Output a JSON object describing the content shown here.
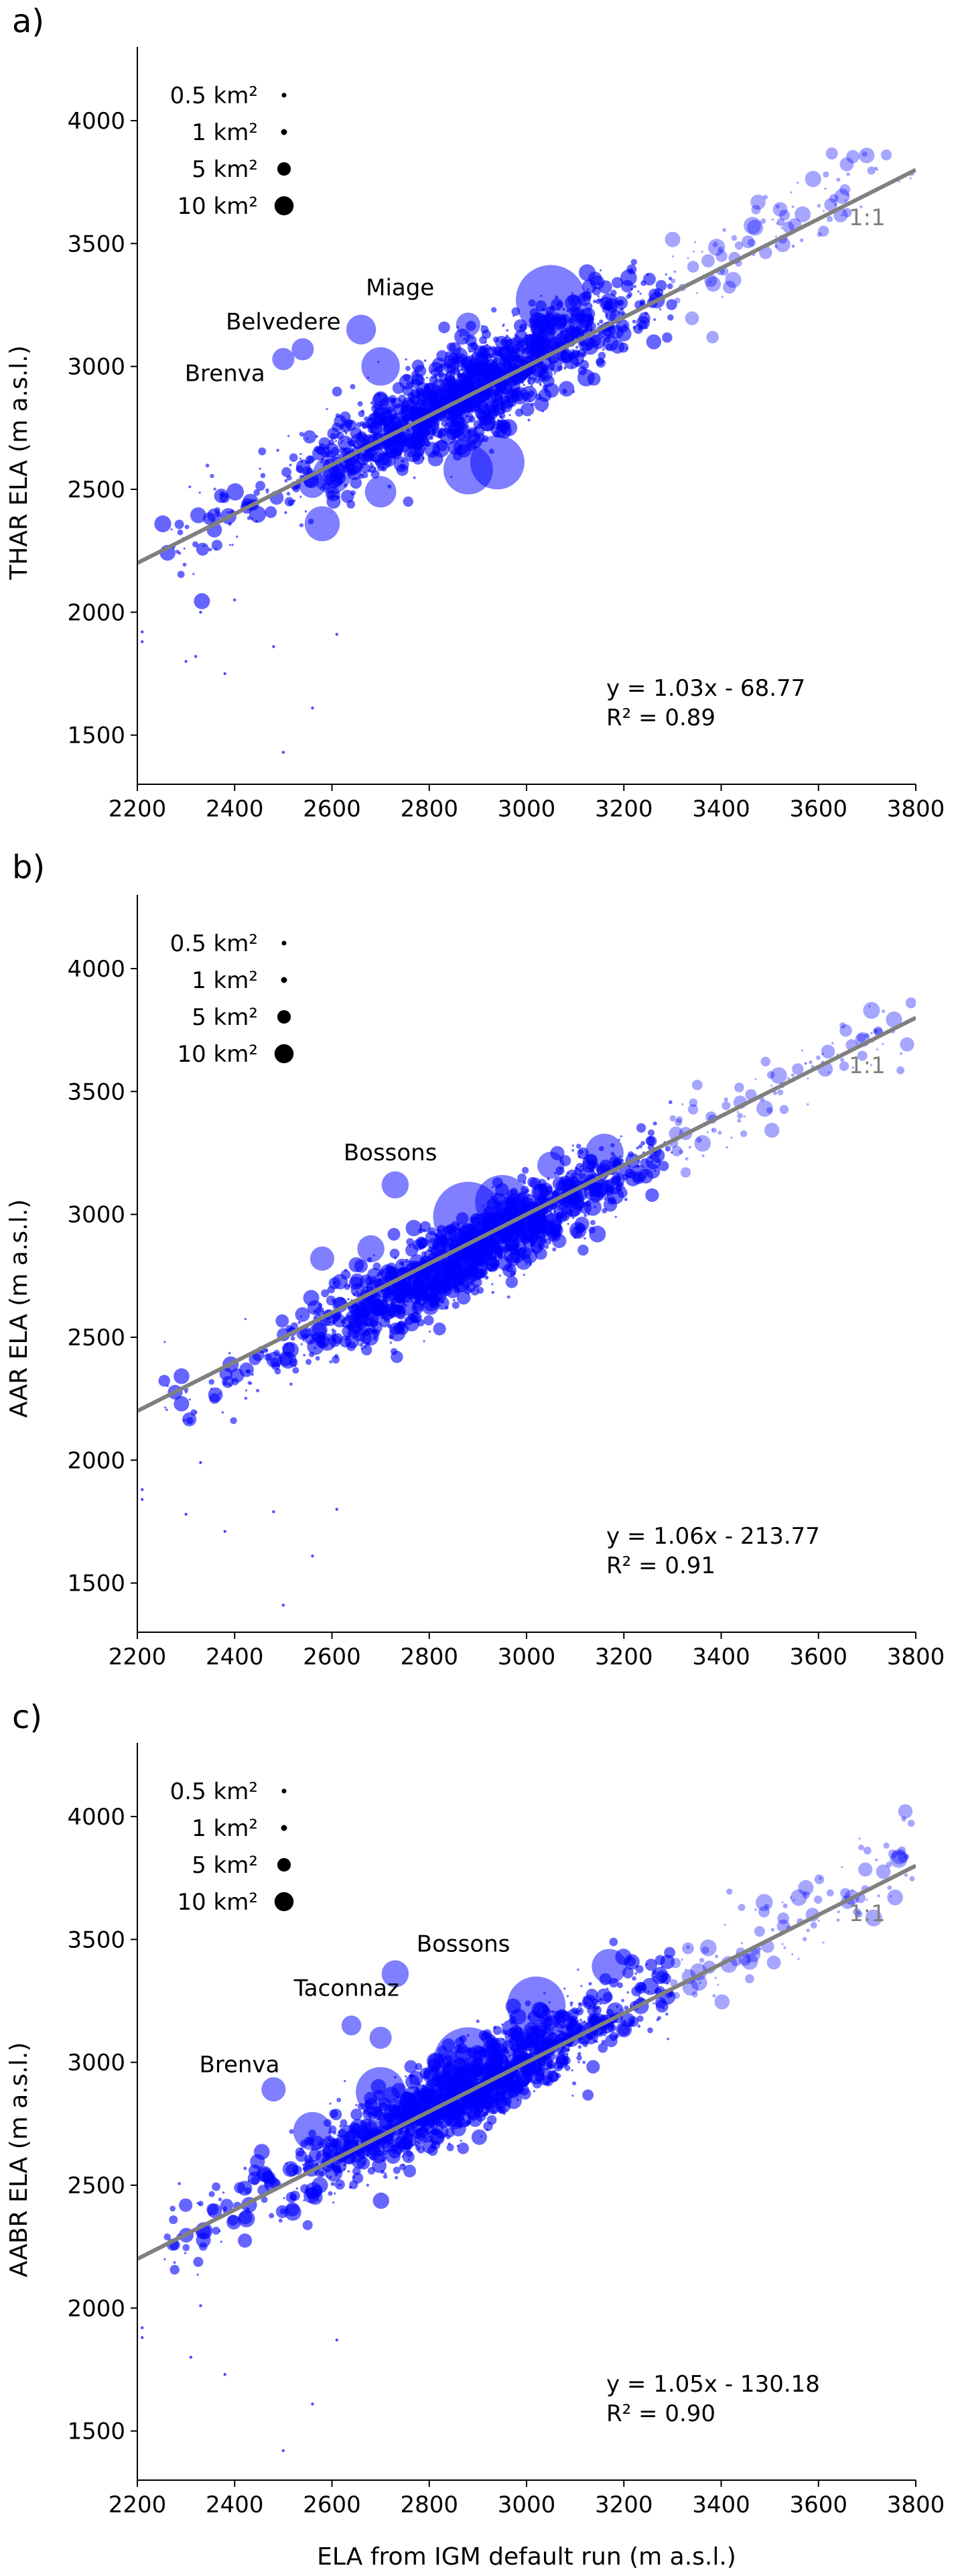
{
  "colors": {
    "points": "#0000ff",
    "one_to_one": "#808080",
    "axis": "#000000"
  },
  "legend": {
    "entries": [
      "0.5 km²",
      "1 km²",
      "5 km²",
      "10 km²"
    ],
    "areas_km2": [
      0.5,
      1,
      5,
      10
    ]
  },
  "shared_xlabel": "ELA from IGM default run (m a.s.l.)",
  "chart_data": [
    {
      "type": "scatter",
      "panel_label": "a)",
      "ylabel": "THAR ELA (m a.s.l.)",
      "xlim": [
        2200,
        3800
      ],
      "ylim": [
        1300,
        4300
      ],
      "xticks": [
        2200,
        2400,
        2600,
        2800,
        3000,
        3200,
        3400,
        3600,
        3800
      ],
      "yticks": [
        1500,
        2000,
        2500,
        3000,
        3500,
        4000
      ],
      "one_to_one_label": "1:1",
      "fit": {
        "slope": 1.03,
        "intercept": -68.77,
        "equation": "y = 1.03x - 68.77",
        "r2": "R² = 0.89"
      },
      "trend": {
        "slope": 1.03,
        "intercept": -68.77,
        "spread": 95
      },
      "legend_visible": true,
      "annotations": [
        {
          "text": "Miage",
          "x": 2740,
          "y": 3290
        },
        {
          "text": "Belvedere",
          "x": 2500,
          "y": 3150
        },
        {
          "text": "Brenva",
          "x": 2380,
          "y": 2940
        }
      ],
      "highlights": [
        {
          "x": 3050,
          "y": 3270,
          "area": 10
        },
        {
          "x": 2880,
          "y": 2580,
          "area": 5
        },
        {
          "x": 2940,
          "y": 2610,
          "area": 6
        },
        {
          "x": 2660,
          "y": 3150,
          "area": 1.8
        },
        {
          "x": 2540,
          "y": 3070,
          "area": 1.0
        },
        {
          "x": 2500,
          "y": 3030,
          "area": 1.0
        },
        {
          "x": 2700,
          "y": 3000,
          "area": 3
        },
        {
          "x": 2580,
          "y": 2360,
          "area": 2.5
        },
        {
          "x": 2600,
          "y": 2560,
          "area": 3
        },
        {
          "x": 2700,
          "y": 2490,
          "area": 2
        },
        {
          "x": 2560,
          "y": 2520,
          "area": 1.5
        },
        {
          "x": 2880,
          "y": 3170,
          "area": 1.2
        }
      ],
      "outliers": [
        {
          "x": 2210,
          "y": 1880
        },
        {
          "x": 2330,
          "y": 2000
        },
        {
          "x": 2380,
          "y": 1750
        },
        {
          "x": 2300,
          "y": 1800
        },
        {
          "x": 2500,
          "y": 1430
        },
        {
          "x": 2610,
          "y": 1910
        },
        {
          "x": 2480,
          "y": 1860
        },
        {
          "x": 2400,
          "y": 2050
        },
        {
          "x": 2560,
          "y": 1610
        },
        {
          "x": 2210,
          "y": 1920
        },
        {
          "x": 2320,
          "y": 1820
        }
      ]
    },
    {
      "type": "scatter",
      "panel_label": "b)",
      "ylabel": "AAR ELA (m a.s.l.)",
      "xlim": [
        2200,
        3800
      ],
      "ylim": [
        1300,
        4300
      ],
      "xticks": [
        2200,
        2400,
        2600,
        2800,
        3000,
        3200,
        3400,
        3600,
        3800
      ],
      "yticks": [
        1500,
        2000,
        2500,
        3000,
        3500,
        4000
      ],
      "one_to_one_label": "1:1",
      "fit": {
        "slope": 1.06,
        "intercept": -213.77,
        "equation": "y = 1.06x - 213.77",
        "r2": "R² = 0.91"
      },
      "trend": {
        "slope": 1.06,
        "intercept": -213.77,
        "spread": 80
      },
      "legend_visible": true,
      "annotations": [
        {
          "text": "Bossons",
          "x": 2720,
          "y": 3220
        }
      ],
      "highlights": [
        {
          "x": 2730,
          "y": 3120,
          "area": 1.5
        },
        {
          "x": 2880,
          "y": 2990,
          "area": 10
        },
        {
          "x": 2950,
          "y": 3050,
          "area": 6
        },
        {
          "x": 3160,
          "y": 3250,
          "area": 3
        },
        {
          "x": 2680,
          "y": 2860,
          "area": 1.5
        },
        {
          "x": 2580,
          "y": 2820,
          "area": 1.2
        },
        {
          "x": 3050,
          "y": 3200,
          "area": 1.5
        }
      ],
      "outliers": [
        {
          "x": 2210,
          "y": 1880
        },
        {
          "x": 2300,
          "y": 1780
        },
        {
          "x": 2380,
          "y": 1710
        },
        {
          "x": 2500,
          "y": 1410
        },
        {
          "x": 2610,
          "y": 1800
        },
        {
          "x": 2480,
          "y": 1790
        },
        {
          "x": 2560,
          "y": 1610
        },
        {
          "x": 2330,
          "y": 1990
        },
        {
          "x": 2210,
          "y": 1840
        }
      ]
    },
    {
      "type": "scatter",
      "panel_label": "c)",
      "ylabel": "AABR ELA (m a.s.l.)",
      "xlim": [
        2200,
        3800
      ],
      "ylim": [
        1300,
        4300
      ],
      "xticks": [
        2200,
        2400,
        2600,
        2800,
        3000,
        3200,
        3400,
        3600,
        3800
      ],
      "yticks": [
        1500,
        2000,
        2500,
        3000,
        3500,
        4000
      ],
      "one_to_one_label": "1:1",
      "fit": {
        "slope": 1.05,
        "intercept": -130.18,
        "equation": "y = 1.05x - 130.18",
        "r2": "R² = 0.90"
      },
      "trend": {
        "slope": 1.05,
        "intercept": -130.18,
        "spread": 85
      },
      "legend_visible": true,
      "annotations": [
        {
          "text": "Bossons",
          "x": 2870,
          "y": 3450
        },
        {
          "text": "Taconnaz",
          "x": 2630,
          "y": 3270
        },
        {
          "text": "Brenva",
          "x": 2410,
          "y": 2960
        }
      ],
      "highlights": [
        {
          "x": 2730,
          "y": 3360,
          "area": 1.5
        },
        {
          "x": 3020,
          "y": 3230,
          "area": 7
        },
        {
          "x": 3170,
          "y": 3390,
          "area": 2.5
        },
        {
          "x": 2480,
          "y": 2890,
          "area": 1.2
        },
        {
          "x": 2640,
          "y": 3150,
          "area": 0.8
        },
        {
          "x": 2880,
          "y": 3000,
          "area": 10
        },
        {
          "x": 2700,
          "y": 2880,
          "area": 5
        },
        {
          "x": 2560,
          "y": 2720,
          "area": 3
        },
        {
          "x": 2700,
          "y": 3100,
          "area": 1.0
        }
      ],
      "outliers": [
        {
          "x": 2210,
          "y": 1880
        },
        {
          "x": 2310,
          "y": 1800
        },
        {
          "x": 2380,
          "y": 1730
        },
        {
          "x": 2500,
          "y": 1420
        },
        {
          "x": 2610,
          "y": 1870
        },
        {
          "x": 2560,
          "y": 1610
        },
        {
          "x": 2330,
          "y": 2010
        },
        {
          "x": 2210,
          "y": 1920
        }
      ]
    }
  ]
}
